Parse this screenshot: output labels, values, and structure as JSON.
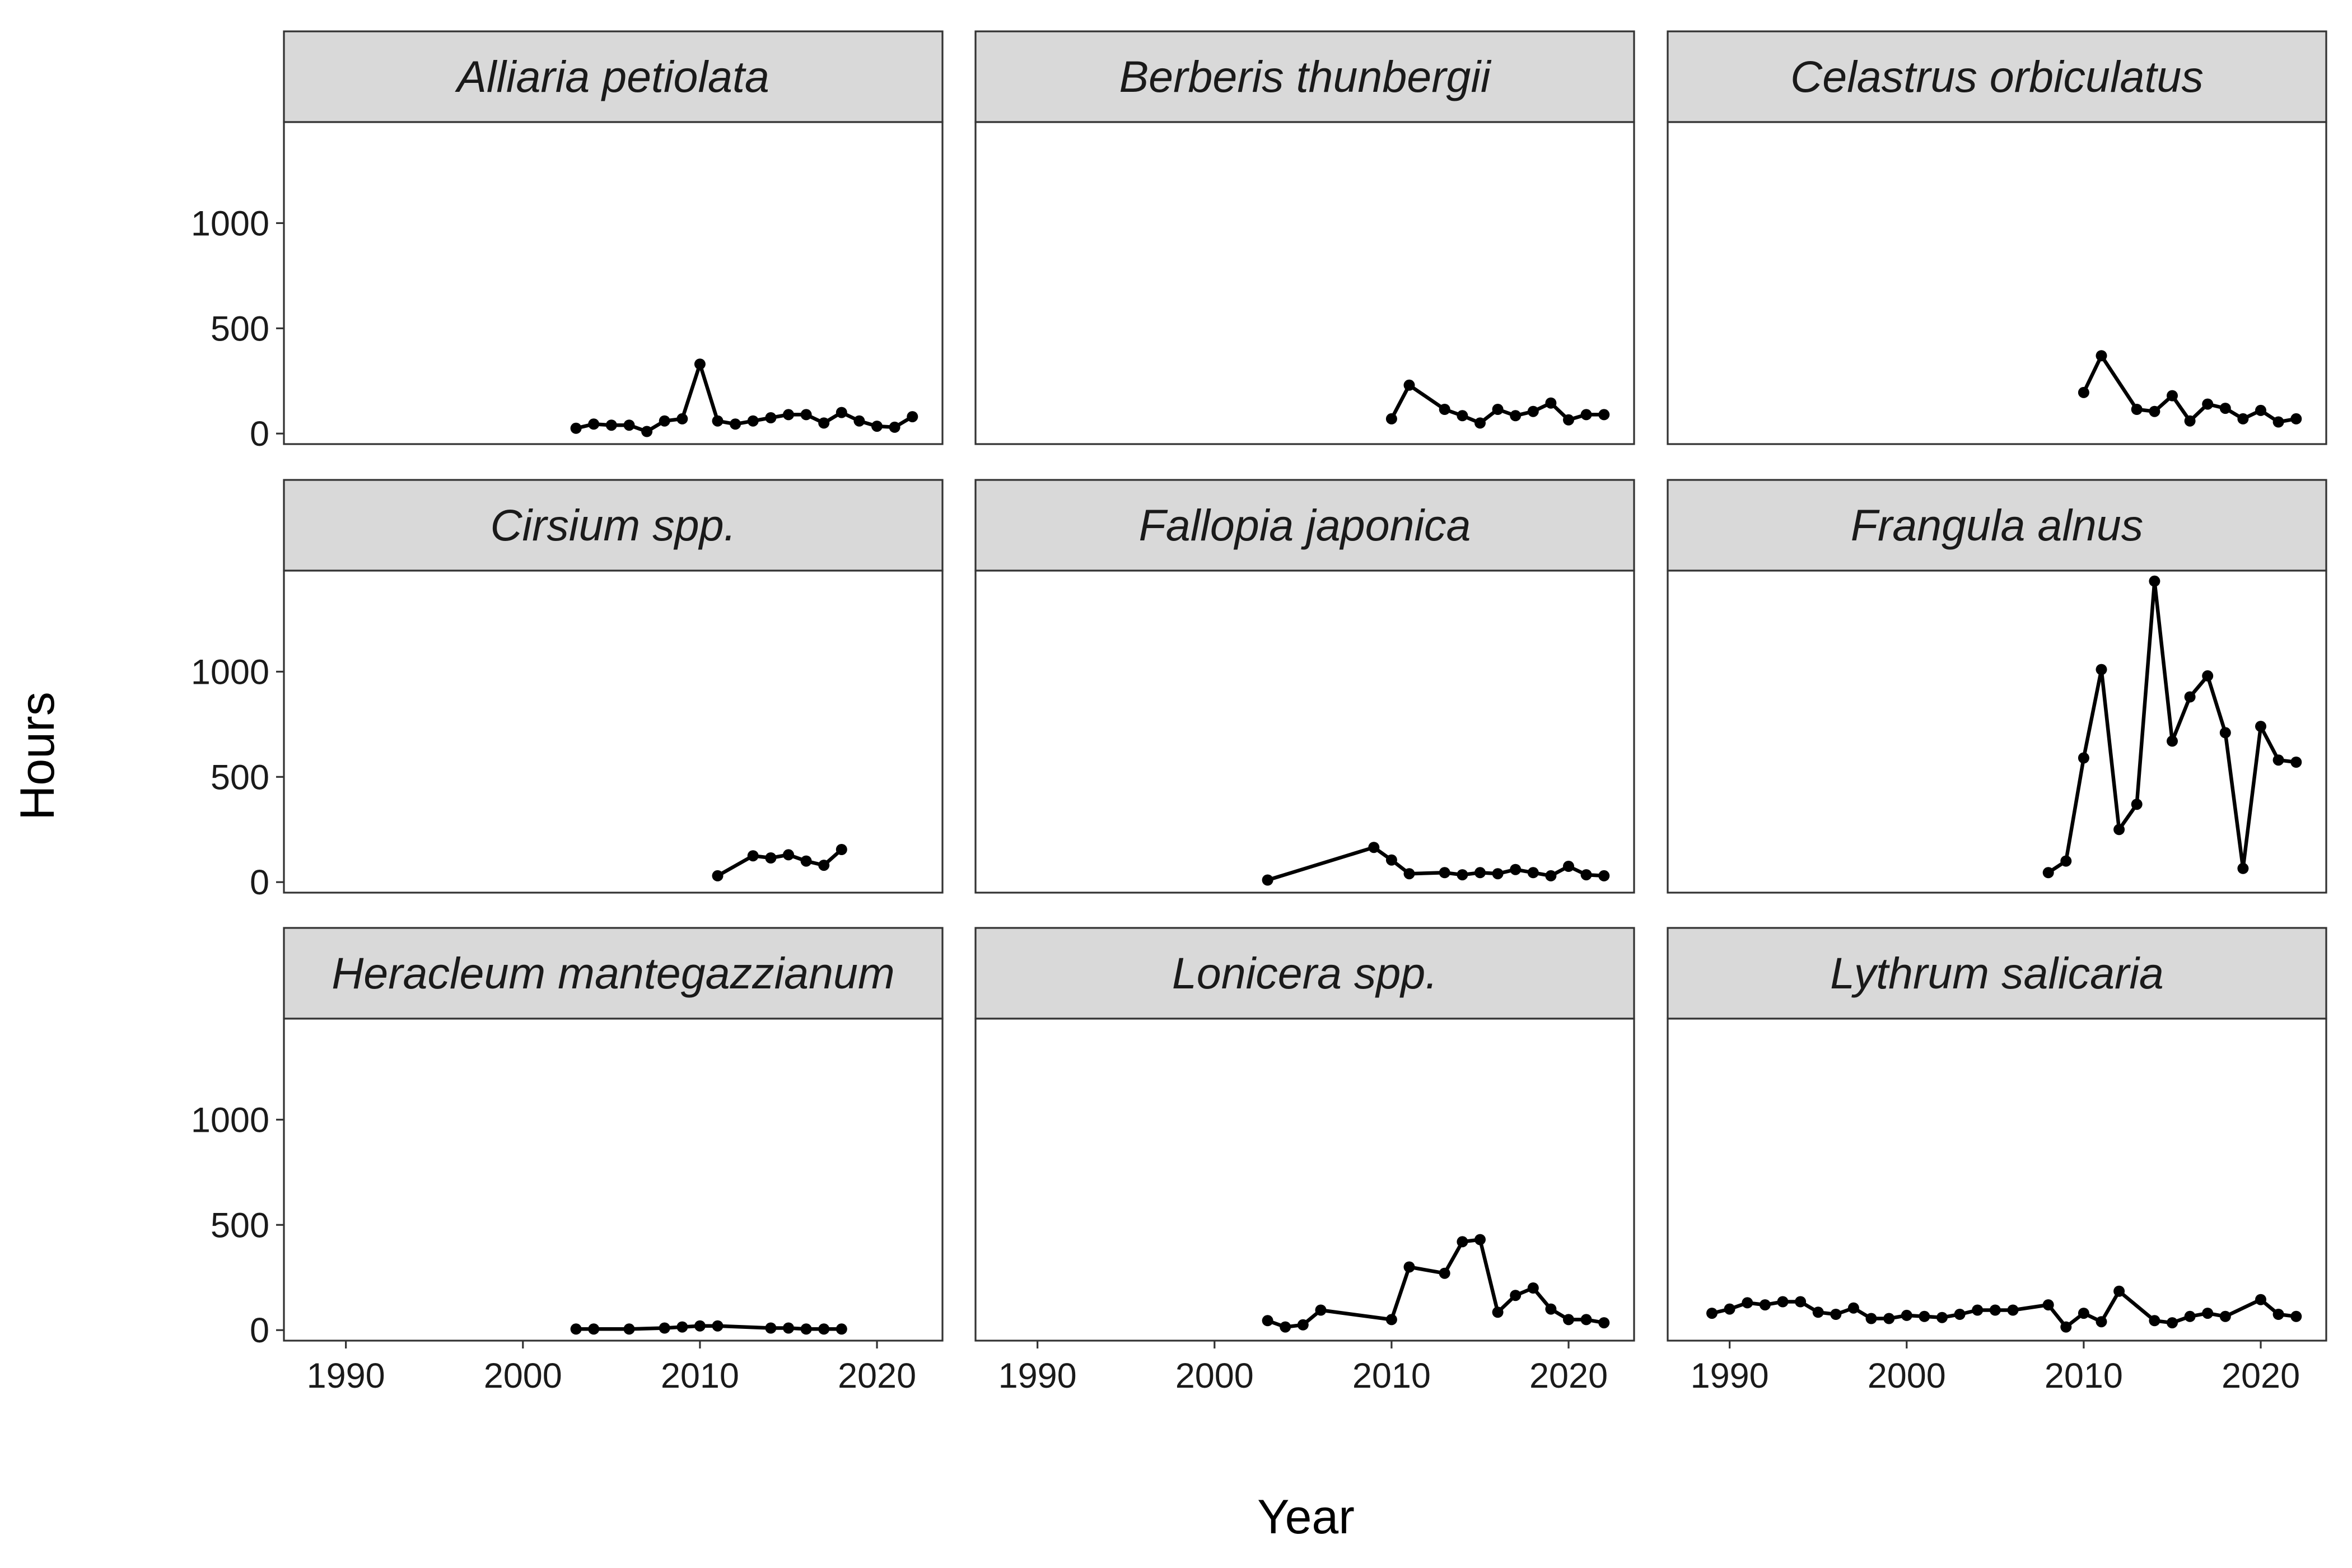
{
  "chart_data": {
    "type": "line",
    "facet_layout": "3x3 facet grid, shared axes",
    "xlabel": "Year",
    "ylabel": "Hours",
    "xlim": [
      1986.5,
      2023.7
    ],
    "ylim": [
      -50,
      1480
    ],
    "x_ticks": [
      1990,
      2000,
      2010,
      2020
    ],
    "y_ticks": [
      0,
      500,
      1000
    ],
    "grid": false,
    "legend": "none",
    "line_color": "#000000",
    "strip_color": "#d9d9d9",
    "panels": [
      {
        "title": "Alliaria petiolata",
        "x": [
          2003,
          2004,
          2005,
          2006,
          2007,
          2008,
          2009,
          2010,
          2011,
          2012,
          2013,
          2014,
          2015,
          2016,
          2017,
          2018,
          2019,
          2020,
          2021,
          2022
        ],
        "y": [
          25,
          45,
          40,
          40,
          10,
          60,
          70,
          330,
          60,
          45,
          60,
          75,
          90,
          90,
          50,
          100,
          60,
          35,
          30,
          80
        ]
      },
      {
        "title": "Berberis thunbergii",
        "x": [
          2010,
          2011,
          2013,
          2014,
          2015,
          2016,
          2017,
          2018,
          2019,
          2020,
          2021,
          2022
        ],
        "y": [
          70,
          230,
          115,
          85,
          50,
          115,
          85,
          105,
          145,
          65,
          90,
          90
        ]
      },
      {
        "title": "Celastrus orbiculatus",
        "x": [
          2010,
          2011,
          2013,
          2014,
          2015,
          2016,
          2017,
          2018,
          2019,
          2020,
          2021,
          2022
        ],
        "y": [
          195,
          370,
          115,
          105,
          180,
          60,
          140,
          120,
          70,
          110,
          55,
          70
        ]
      },
      {
        "title": "Cirsium spp.",
        "x": [
          2011,
          2013,
          2014,
          2015,
          2016,
          2017,
          2018
        ],
        "y": [
          30,
          125,
          115,
          130,
          100,
          80,
          155
        ]
      },
      {
        "title": "Fallopia japonica",
        "x": [
          2003,
          2009,
          2010,
          2011,
          2013,
          2014,
          2015,
          2016,
          2017,
          2018,
          2019,
          2020,
          2021,
          2022
        ],
        "y": [
          10,
          165,
          105,
          40,
          45,
          35,
          45,
          40,
          60,
          45,
          30,
          75,
          35,
          30
        ]
      },
      {
        "title": "Frangula alnus",
        "x": [
          2008,
          2009,
          2010,
          2011,
          2012,
          2013,
          2014,
          2015,
          2016,
          2017,
          2018,
          2019,
          2020,
          2021,
          2022
        ],
        "y": [
          45,
          100,
          590,
          1010,
          250,
          370,
          1430,
          670,
          880,
          980,
          710,
          65,
          740,
          580,
          570
        ]
      },
      {
        "title": "Heracleum mantegazzianum",
        "x": [
          2003,
          2004,
          2006,
          2008,
          2009,
          2010,
          2011,
          2014,
          2015,
          2016,
          2017,
          2018
        ],
        "y": [
          5,
          5,
          5,
          10,
          15,
          20,
          20,
          10,
          10,
          5,
          5,
          5
        ]
      },
      {
        "title": "Lonicera spp.",
        "x": [
          2003,
          2004,
          2005,
          2006,
          2010,
          2011,
          2013,
          2014,
          2015,
          2016,
          2017,
          2018,
          2019,
          2020,
          2021,
          2022
        ],
        "y": [
          45,
          15,
          25,
          95,
          50,
          300,
          270,
          420,
          430,
          85,
          165,
          200,
          100,
          50,
          50,
          35
        ]
      },
      {
        "title": "Lythrum salicaria",
        "x": [
          1989,
          1990,
          1991,
          1992,
          1993,
          1994,
          1995,
          1996,
          1997,
          1998,
          1999,
          2000,
          2001,
          2002,
          2003,
          2004,
          2005,
          2006,
          2008,
          2009,
          2010,
          2011,
          2012,
          2014,
          2015,
          2016,
          2017,
          2018,
          2020,
          2021,
          2022
        ],
        "y": [
          80,
          100,
          130,
          120,
          135,
          135,
          85,
          75,
          105,
          55,
          55,
          70,
          65,
          60,
          75,
          95,
          95,
          95,
          120,
          15,
          80,
          40,
          185,
          45,
          35,
          65,
          80,
          65,
          145,
          75,
          65
        ]
      }
    ]
  }
}
